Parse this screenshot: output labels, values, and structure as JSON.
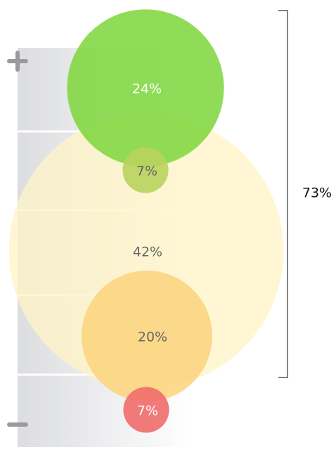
{
  "chart_data": {
    "type": "bubble",
    "values": [
      24,
      7,
      42,
      20,
      7
    ],
    "value_labels": [
      "24%",
      "7%",
      "42%",
      "20%",
      "7%"
    ],
    "colors": [
      "#7dd63b",
      "#b8d35c",
      "#fff4c6",
      "#fcd37c",
      "#f06b6b"
    ],
    "label_colors": [
      "#ffffff",
      "#666666",
      "#666666",
      "#666666",
      "#ffffff"
    ],
    "bracket_label": "73%"
  }
}
